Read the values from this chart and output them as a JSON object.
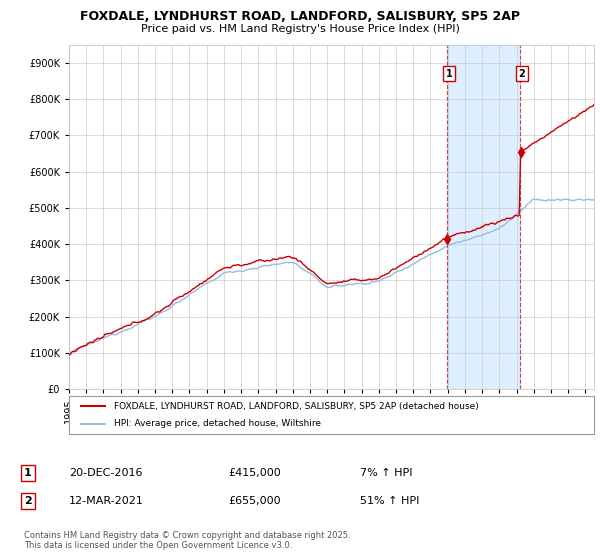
{
  "title1": "FOXDALE, LYNDHURST ROAD, LANDFORD, SALISBURY, SP5 2AP",
  "title2": "Price paid vs. HM Land Registry's House Price Index (HPI)",
  "ylabel_ticks": [
    "£0",
    "£100K",
    "£200K",
    "£300K",
    "£400K",
    "£500K",
    "£600K",
    "£700K",
    "£800K",
    "£900K"
  ],
  "ytick_values": [
    0,
    100000,
    200000,
    300000,
    400000,
    500000,
    600000,
    700000,
    800000,
    900000
  ],
  "ylim": [
    0,
    950000
  ],
  "xlim_start": 1995.0,
  "xlim_end": 2025.5,
  "line1_color": "#cc0000",
  "line2_color": "#99bbdd",
  "sale1_x": 2016.97,
  "sale1_y": 415000,
  "sale2_x": 2021.21,
  "sale2_y": 655000,
  "vline_color": "#cc4444",
  "highlight_color": "#ddeeff",
  "legend_label1": "FOXDALE, LYNDHURST ROAD, LANDFORD, SALISBURY, SP5 2AP (detached house)",
  "legend_label2": "HPI: Average price, detached house, Wiltshire",
  "note1_box": "1",
  "note1_date": "20-DEC-2016",
  "note1_price": "£415,000",
  "note1_hpi": "7% ↑ HPI",
  "note2_box": "2",
  "note2_date": "12-MAR-2021",
  "note2_price": "£655,000",
  "note2_hpi": "51% ↑ HPI",
  "footer": "Contains HM Land Registry data © Crown copyright and database right 2025.\nThis data is licensed under the Open Government Licence v3.0.",
  "background_color": "#ffffff",
  "grid_color": "#cccccc"
}
